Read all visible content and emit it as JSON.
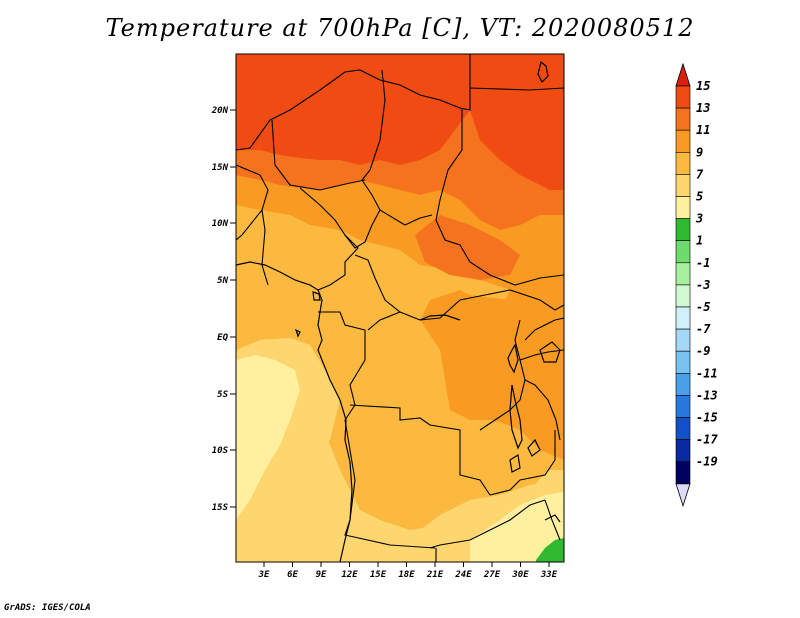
{
  "title": "Temperature at 700hPa [C], VT: 2020080512",
  "credit": "GrADS: IGES/COLA",
  "lat_labels": [
    "20N",
    "15N",
    "10N",
    "5N",
    "EQ",
    "5S",
    "10S",
    "15S"
  ],
  "lon_labels": [
    "3E",
    "6E",
    "9E",
    "12E",
    "15E",
    "18E",
    "21E",
    "24E",
    "27E",
    "30E",
    "33E"
  ],
  "colorbar": {
    "levels": [
      "15",
      "13",
      "11",
      "9",
      "7",
      "5",
      "3",
      "1",
      "-1",
      "-3",
      "-5",
      "-7",
      "-9",
      "-11",
      "-13",
      "-15",
      "-17",
      "-19"
    ],
    "colors": [
      "#dc1e0a",
      "#f04b12",
      "#f5731e",
      "#f99b23",
      "#fbb940",
      "#fdd670",
      "#fff0a0",
      "#32b932",
      "#6edb6e",
      "#a7f0a0",
      "#d2f8d2",
      "#d2f0fa",
      "#a5d8f5",
      "#78c2f0",
      "#4b9fe8",
      "#2878e0",
      "#1450c8",
      "#0a28a0",
      "#000060",
      "#dcdcfa"
    ]
  },
  "map": {
    "colors": {
      "t13": "#f04b12",
      "t11": "#f5731e",
      "t9": "#f99b23",
      "t7": "#fbb940",
      "t5": "#fdd670",
      "t3": "#fff0a0",
      "t1": "#32b932"
    }
  }
}
